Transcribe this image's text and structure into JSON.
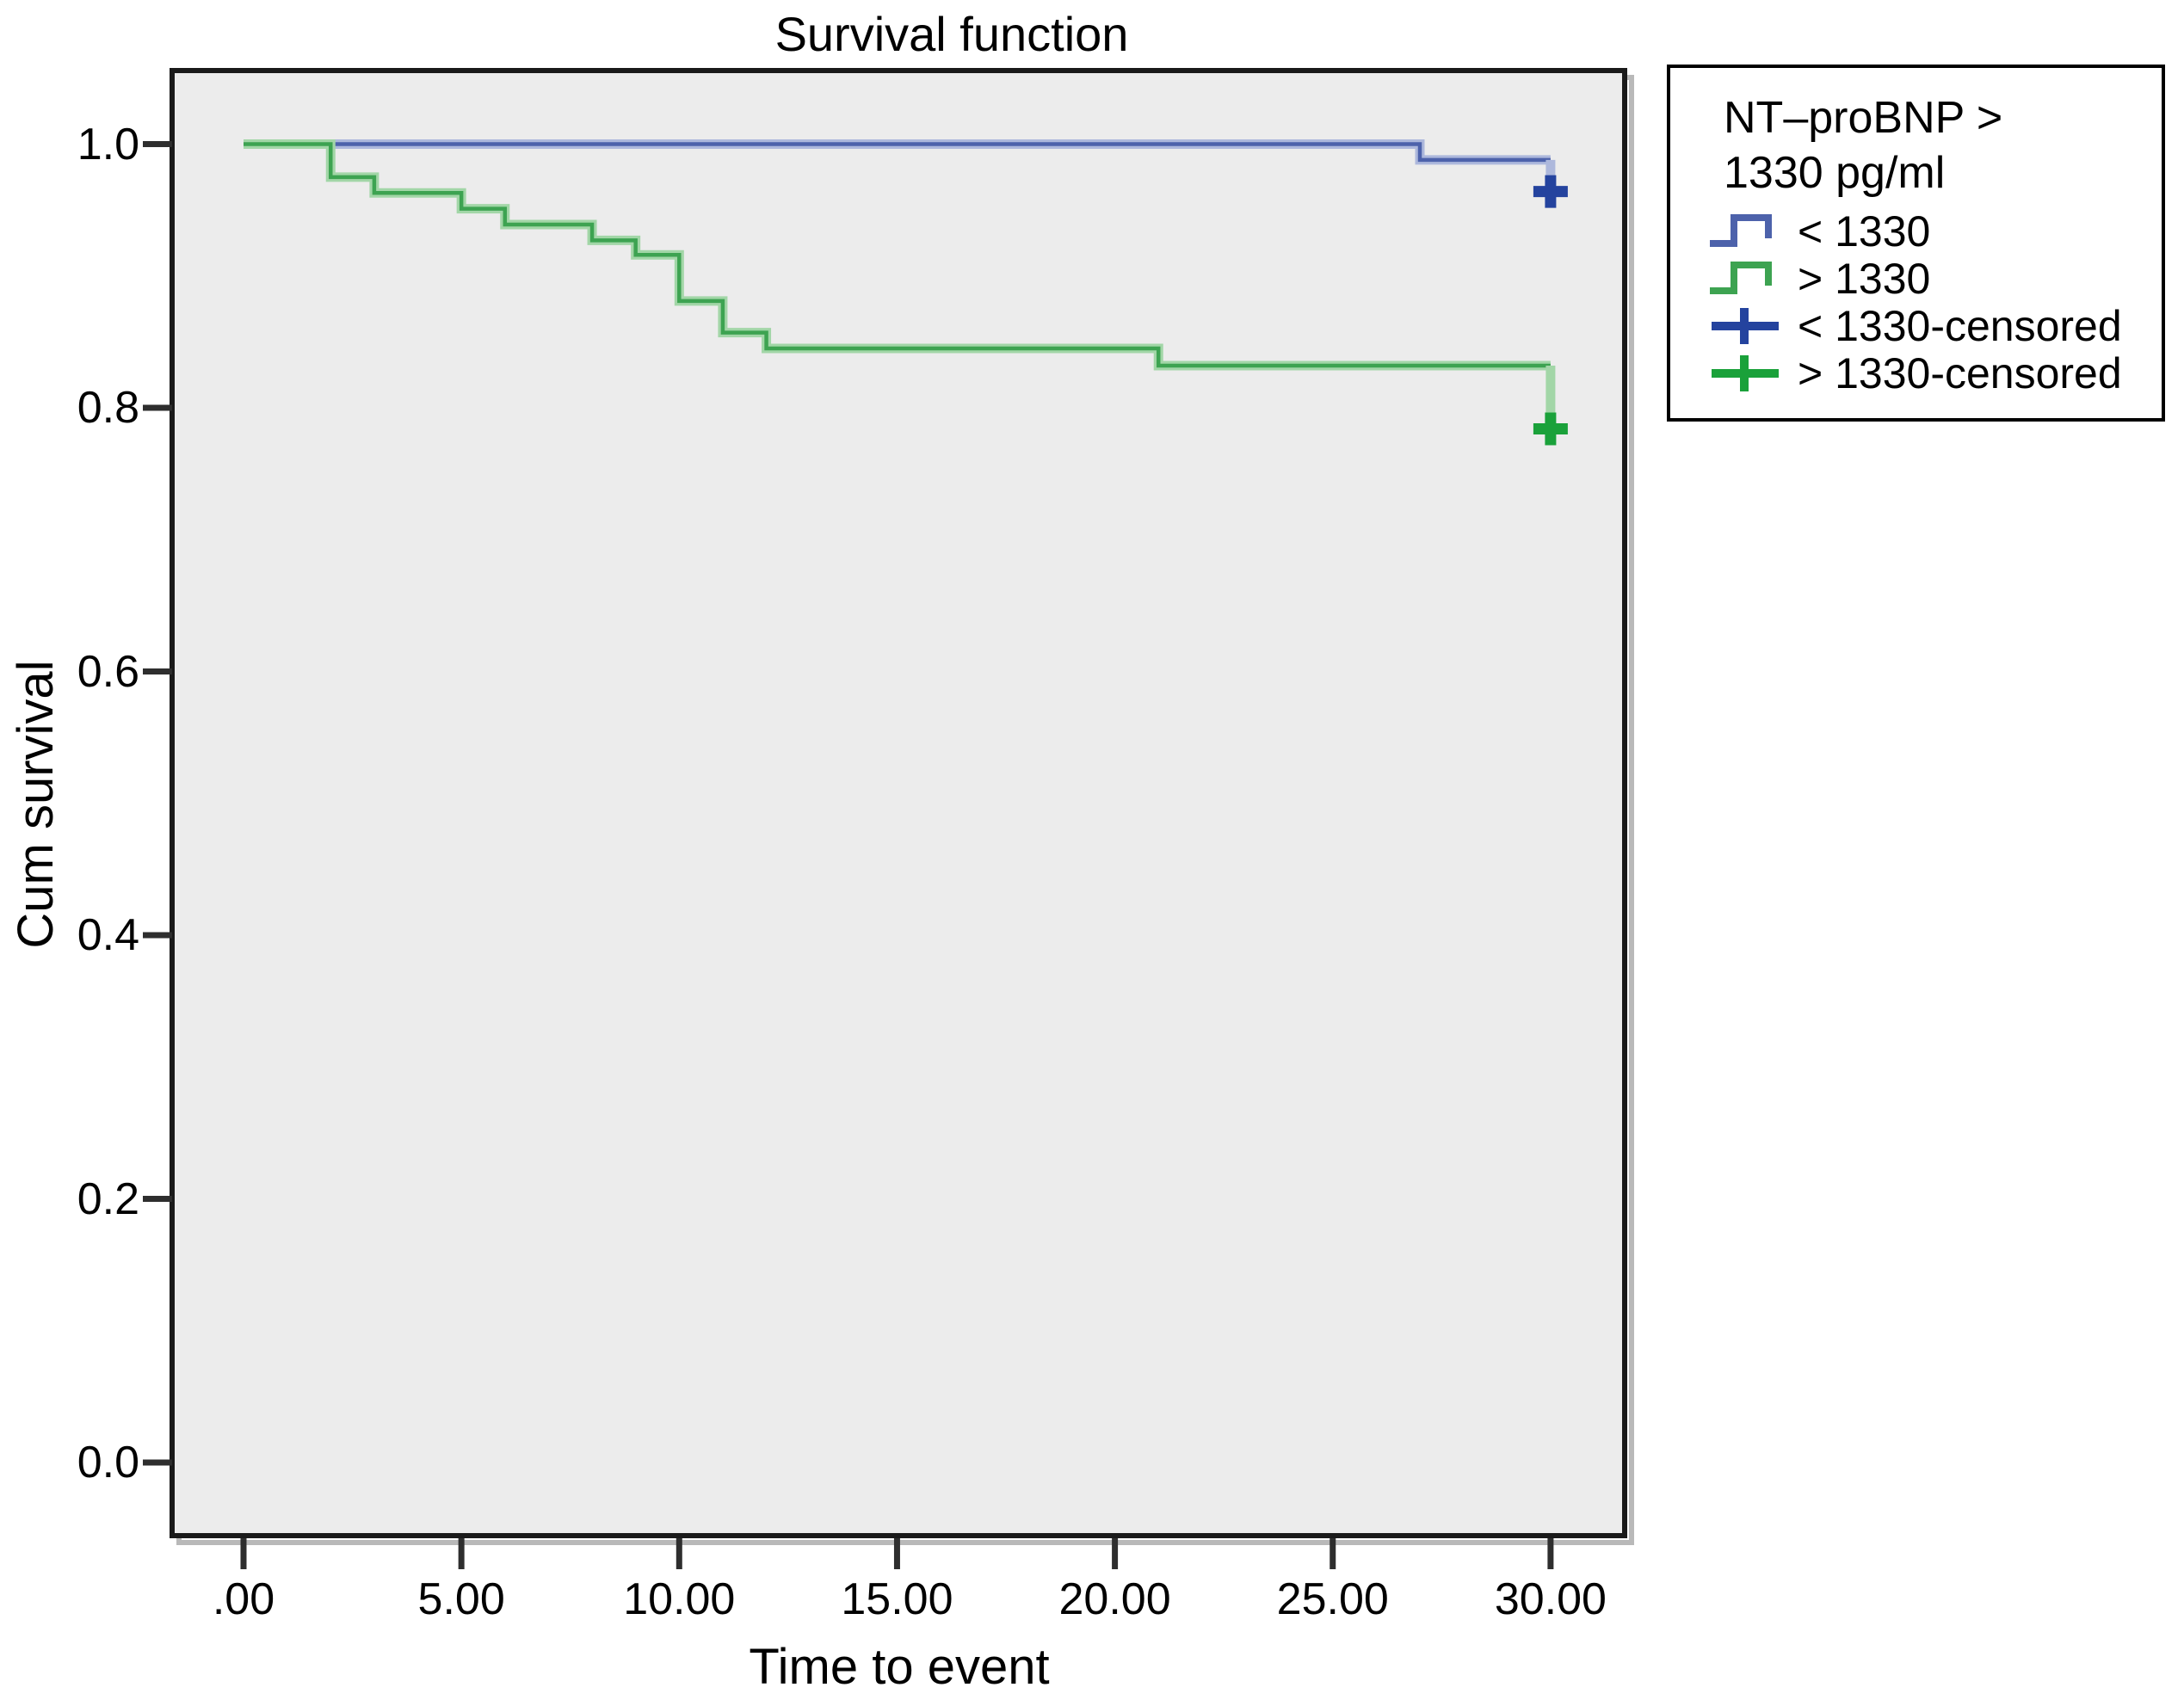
{
  "title": "Survival function",
  "axes": {
    "x": {
      "title": "Time to event",
      "tick_labels": [
        ".00",
        "5.00",
        "10.00",
        "15.00",
        "20.00",
        "25.00",
        "30.00"
      ],
      "tick_values": [
        0,
        5,
        10,
        15,
        20,
        25,
        30
      ]
    },
    "y": {
      "title": "Cum survival",
      "tick_labels": [
        "1.0",
        "0.8",
        "0.6",
        "0.4",
        "0.2",
        "0.0"
      ],
      "tick_values": [
        1.0,
        0.8,
        0.6,
        0.4,
        0.2,
        0.0
      ]
    }
  },
  "legend": {
    "title_line1": "NT–proBNP >",
    "title_line2": "1330 pg/ml",
    "items": [
      {
        "label": "< 1330",
        "symbol": "step",
        "color": "#4d62ab"
      },
      {
        "label": "> 1330",
        "symbol": "step",
        "color": "#3da351"
      },
      {
        "label": "< 1330-censored",
        "symbol": "plus",
        "color": "#24439e"
      },
      {
        "label": "> 1330-censored",
        "symbol": "plus",
        "color": "#1aa13a"
      }
    ]
  },
  "colors": {
    "plot_background": "#ececec",
    "plot_border": "#1a1a1a",
    "tick": "#2e2e2e"
  },
  "chart_data": {
    "type": "line",
    "subtype": "kaplan-meier-step",
    "title": "Survival function",
    "xlabel": "Time to event",
    "ylabel": "Cum survival",
    "xlim": [
      -1.6,
      31.7
    ],
    "ylim": [
      -0.055,
      1.056
    ],
    "x_ticks": [
      0,
      5,
      10,
      15,
      20,
      25,
      30
    ],
    "y_ticks": [
      0.0,
      0.2,
      0.4,
      0.6,
      0.8,
      1.0
    ],
    "grid": false,
    "legend_position": "outside-right",
    "series": [
      {
        "name": "< 1330",
        "color": "#4d62ab",
        "halo_color": "#adb8dc",
        "censor_color": "#24439e",
        "steps": [
          [
            0,
            1.0
          ],
          [
            27,
            1.0
          ],
          [
            27,
            0.988
          ],
          [
            30,
            0.988
          ]
        ],
        "censored_at": {
          "x": 30,
          "y": 0.964
        }
      },
      {
        "name": "> 1330",
        "color": "#3da351",
        "halo_color": "#a2d6a7",
        "censor_color": "#1aa13a",
        "steps": [
          [
            0,
            1.0
          ],
          [
            2,
            1.0
          ],
          [
            2,
            0.975
          ],
          [
            3,
            0.975
          ],
          [
            3,
            0.963
          ],
          [
            5,
            0.963
          ],
          [
            5,
            0.951
          ],
          [
            6,
            0.951
          ],
          [
            6,
            0.939
          ],
          [
            8,
            0.939
          ],
          [
            8,
            0.927
          ],
          [
            9,
            0.927
          ],
          [
            9,
            0.916
          ],
          [
            10,
            0.916
          ],
          [
            10,
            0.881
          ],
          [
            11,
            0.881
          ],
          [
            11,
            0.857
          ],
          [
            12,
            0.857
          ],
          [
            12,
            0.845
          ],
          [
            21,
            0.845
          ],
          [
            21,
            0.832
          ],
          [
            30,
            0.832
          ]
        ],
        "censored_at": {
          "x": 30,
          "y": 0.784
        }
      }
    ]
  }
}
